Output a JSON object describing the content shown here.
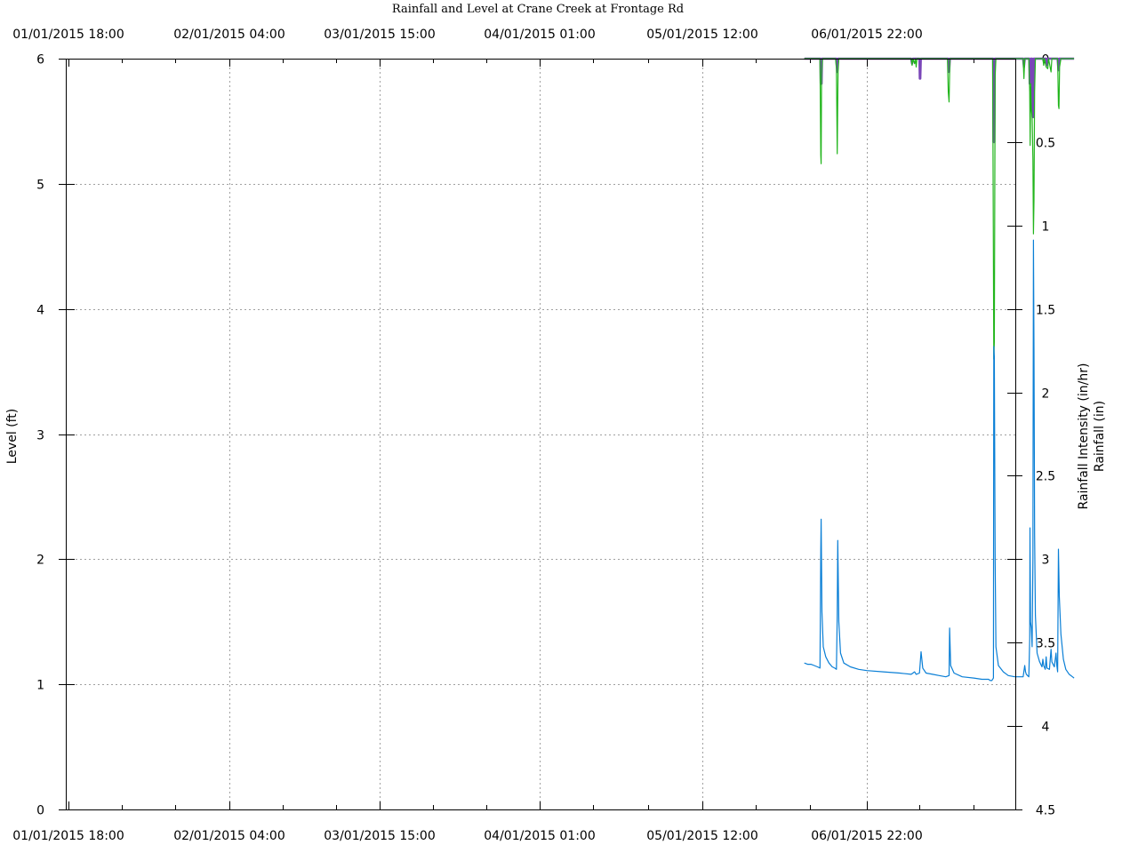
{
  "chart_data": {
    "type": "line",
    "title": "Rainfall and Level at Crane Creek at Frontage Rd",
    "ylabel": "Level (ft)",
    "y2label_line1": "Rainfall Intensity (in/hr)",
    "y2label_line2": "Rainfall (in)",
    "x_ticks": [
      "01/01/2015 18:00",
      "02/01/2015 04:00",
      "03/01/2015 15:00",
      "04/01/2015 01:00",
      "05/01/2015 12:00",
      "06/01/2015 22:00"
    ],
    "y_ticks": [
      0,
      1,
      2,
      3,
      4,
      5,
      6
    ],
    "y2_ticks": [
      "0",
      "0.5",
      "1",
      "1.5",
      "2",
      "2.5",
      "3",
      "3.5",
      "4",
      "4.5"
    ],
    "ylim": [
      0,
      6
    ],
    "y2lim": [
      0,
      4.5
    ],
    "grid": true,
    "colors": {
      "level": "#0a7fd6",
      "intensity": "#22b51c",
      "rainfall": "#7a46b8",
      "rainfall_fill": "#5a5a78"
    },
    "series": [
      {
        "name": "Level",
        "axis": "left",
        "points": [
          [
            4.62,
            1.17
          ],
          [
            4.64,
            1.16
          ],
          [
            4.66,
            1.16
          ],
          [
            4.68,
            1.15
          ],
          [
            4.7,
            1.14
          ],
          [
            4.715,
            1.13
          ],
          [
            4.72,
            2.07
          ],
          [
            4.722,
            2.32
          ],
          [
            4.727,
            1.58
          ],
          [
            4.735,
            1.3
          ],
          [
            4.75,
            1.22
          ],
          [
            4.77,
            1.17
          ],
          [
            4.79,
            1.14
          ],
          [
            4.805,
            1.13
          ],
          [
            4.815,
            1.12
          ],
          [
            4.82,
            1.55
          ],
          [
            4.823,
            2.15
          ],
          [
            4.83,
            1.5
          ],
          [
            4.84,
            1.25
          ],
          [
            4.86,
            1.17
          ],
          [
            4.9,
            1.14
          ],
          [
            4.95,
            1.12
          ],
          [
            5.0,
            1.11
          ],
          [
            5.1,
            1.1
          ],
          [
            5.2,
            1.09
          ],
          [
            5.27,
            1.08
          ],
          [
            5.29,
            1.1
          ],
          [
            5.3,
            1.08
          ],
          [
            5.32,
            1.09
          ],
          [
            5.33,
            1.26
          ],
          [
            5.34,
            1.13
          ],
          [
            5.36,
            1.09
          ],
          [
            5.4,
            1.08
          ],
          [
            5.44,
            1.07
          ],
          [
            5.48,
            1.06
          ],
          [
            5.5,
            1.07
          ],
          [
            5.503,
            1.45
          ],
          [
            5.51,
            1.15
          ],
          [
            5.53,
            1.09
          ],
          [
            5.58,
            1.06
          ],
          [
            5.65,
            1.05
          ],
          [
            5.7,
            1.04
          ],
          [
            5.74,
            1.04
          ],
          [
            5.75,
            1.03
          ],
          [
            5.76,
            1.03
          ],
          [
            5.77,
            1.05
          ],
          [
            5.772,
            3.7
          ],
          [
            5.775,
            3.62
          ],
          [
            5.78,
            2.0
          ],
          [
            5.785,
            1.3
          ],
          [
            5.8,
            1.15
          ],
          [
            5.83,
            1.1
          ],
          [
            5.86,
            1.07
          ],
          [
            5.9,
            1.06
          ],
          [
            5.95,
            1.06
          ],
          [
            5.96,
            1.15
          ],
          [
            5.965,
            1.1
          ],
          [
            5.97,
            1.08
          ],
          [
            5.985,
            1.06
          ],
          [
            5.99,
            1.36
          ],
          [
            5.992,
            2.25
          ],
          [
            5.995,
            1.5
          ],
          [
            6.0,
            1.45
          ],
          [
            6.005,
            1.3
          ],
          [
            6.01,
            2.0
          ],
          [
            6.013,
            4.55
          ],
          [
            6.016,
            3.68
          ],
          [
            6.02,
            2.2
          ],
          [
            6.025,
            1.55
          ],
          [
            6.035,
            1.25
          ],
          [
            6.05,
            1.18
          ],
          [
            6.065,
            1.14
          ],
          [
            6.07,
            1.2
          ],
          [
            6.075,
            1.15
          ],
          [
            6.085,
            1.12
          ],
          [
            6.09,
            1.22
          ],
          [
            6.095,
            1.13
          ],
          [
            6.11,
            1.12
          ],
          [
            6.12,
            1.28
          ],
          [
            6.125,
            1.18
          ],
          [
            6.14,
            1.14
          ],
          [
            6.15,
            1.25
          ],
          [
            6.155,
            1.15
          ],
          [
            6.16,
            1.1
          ],
          [
            6.165,
            2.08
          ],
          [
            6.17,
            1.7
          ],
          [
            6.18,
            1.4
          ],
          [
            6.195,
            1.2
          ],
          [
            6.21,
            1.12
          ],
          [
            6.23,
            1.08
          ],
          [
            6.25,
            1.06
          ],
          [
            6.26,
            1.05
          ]
        ]
      },
      {
        "name": "Rainfall Intensity (in/hr)",
        "axis": "right",
        "points": [
          [
            4.62,
            0
          ],
          [
            4.7,
            0
          ],
          [
            4.715,
            0
          ],
          [
            4.72,
            0.58
          ],
          [
            4.722,
            0.63
          ],
          [
            4.725,
            0.1
          ],
          [
            4.73,
            0
          ],
          [
            4.81,
            0
          ],
          [
            4.815,
            0.06
          ],
          [
            4.82,
            0.57
          ],
          [
            4.825,
            0.08
          ],
          [
            4.83,
            0
          ],
          [
            5.27,
            0
          ],
          [
            5.275,
            0.04
          ],
          [
            5.28,
            0
          ],
          [
            5.29,
            0.03
          ],
          [
            5.295,
            0
          ],
          [
            5.3,
            0.05
          ],
          [
            5.305,
            0
          ],
          [
            5.49,
            0
          ],
          [
            5.495,
            0.2
          ],
          [
            5.5,
            0.26
          ],
          [
            5.505,
            0
          ],
          [
            5.765,
            0
          ],
          [
            5.768,
            0.8
          ],
          [
            5.772,
            1.8
          ],
          [
            5.775,
            1.7
          ],
          [
            5.78,
            0.1
          ],
          [
            5.785,
            0
          ],
          [
            5.95,
            0
          ],
          [
            5.955,
            0.12
          ],
          [
            5.96,
            0
          ],
          [
            5.985,
            0
          ],
          [
            5.99,
            0.2
          ],
          [
            5.993,
            0.52
          ],
          [
            5.996,
            0.15
          ],
          [
            6.0,
            0.3
          ],
          [
            6.005,
            0.35
          ],
          [
            6.01,
            0.6
          ],
          [
            6.013,
            1.05
          ],
          [
            6.016,
            0.85
          ],
          [
            6.02,
            0.2
          ],
          [
            6.025,
            0
          ],
          [
            6.07,
            0
          ],
          [
            6.075,
            0.04
          ],
          [
            6.08,
            0
          ],
          [
            6.09,
            0.05
          ],
          [
            6.1,
            0.06
          ],
          [
            6.105,
            0
          ],
          [
            6.12,
            0.08
          ],
          [
            6.125,
            0
          ],
          [
            6.16,
            0
          ],
          [
            6.165,
            0.28
          ],
          [
            6.168,
            0.3
          ],
          [
            6.172,
            0.05
          ],
          [
            6.18,
            0
          ],
          [
            6.26,
            0
          ]
        ]
      },
      {
        "name": "Rainfall (in)",
        "axis": "right",
        "points": [
          [
            4.62,
            0
          ],
          [
            4.7,
            0
          ],
          [
            4.718,
            0
          ],
          [
            4.72,
            0.15
          ],
          [
            4.725,
            0.15
          ],
          [
            4.727,
            0
          ],
          [
            4.815,
            0
          ],
          [
            4.82,
            0.08
          ],
          [
            4.825,
            0
          ],
          [
            5.27,
            0
          ],
          [
            5.275,
            0.03
          ],
          [
            5.28,
            0
          ],
          [
            5.32,
            0
          ],
          [
            5.322,
            0.12
          ],
          [
            5.325,
            0.12
          ],
          [
            5.328,
            0
          ],
          [
            5.495,
            0
          ],
          [
            5.5,
            0.08
          ],
          [
            5.505,
            0
          ],
          [
            5.768,
            0
          ],
          [
            5.77,
            0.5
          ],
          [
            5.775,
            0.5
          ],
          [
            5.778,
            0
          ],
          [
            5.95,
            0
          ],
          [
            5.955,
            0.05
          ],
          [
            5.96,
            0
          ],
          [
            5.988,
            0
          ],
          [
            5.99,
            0.15
          ],
          [
            5.996,
            0.15
          ],
          [
            5.998,
            0
          ],
          [
            6.005,
            0
          ],
          [
            6.008,
            0.35
          ],
          [
            6.013,
            0.35
          ],
          [
            6.015,
            0
          ],
          [
            6.09,
            0
          ],
          [
            6.095,
            0.04
          ],
          [
            6.1,
            0
          ],
          [
            6.16,
            0
          ],
          [
            6.165,
            0.07
          ],
          [
            6.17,
            0
          ],
          [
            6.26,
            0
          ]
        ]
      }
    ]
  }
}
